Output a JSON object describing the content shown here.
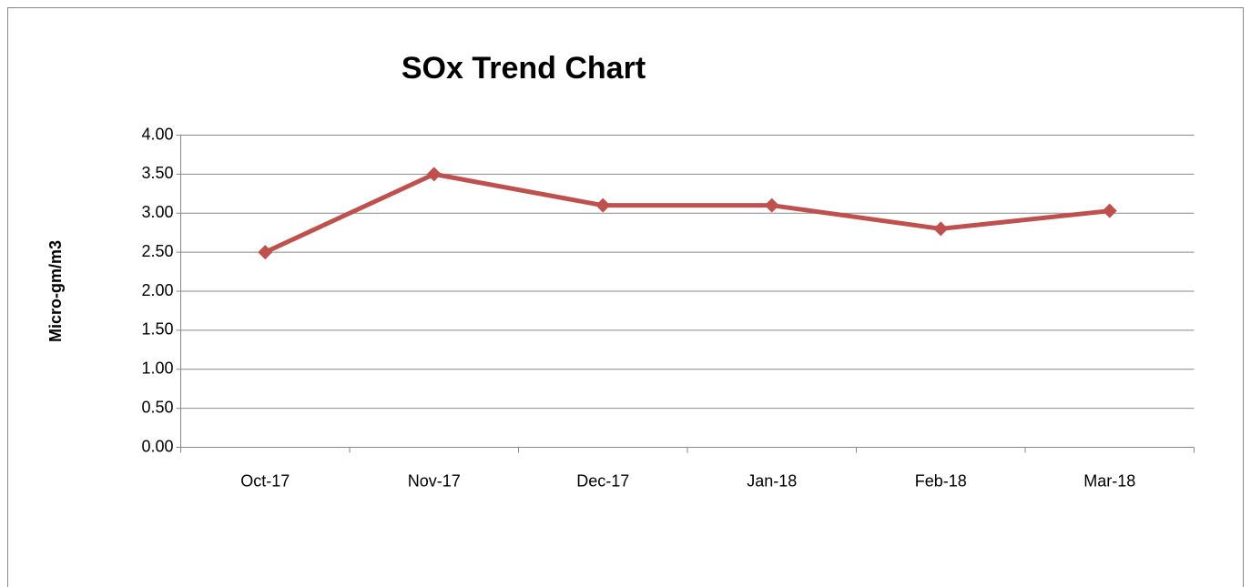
{
  "chart_data": {
    "type": "line",
    "title": "SOx Trend Chart",
    "y_label": "Micro-gm/m3",
    "categories": [
      "Oct-17",
      "Nov-17",
      "Dec-17",
      "Jan-18",
      "Feb-18",
      "Mar-18"
    ],
    "series": [
      {
        "name": "SOx",
        "color": "#c0504d",
        "values": [
          2.5,
          3.5,
          3.1,
          3.1,
          2.8,
          3.03
        ]
      }
    ],
    "ylim": [
      0,
      4
    ],
    "yticks": [
      {
        "value": 0,
        "label": "0.00"
      },
      {
        "value": 0.5,
        "label": "0.50"
      },
      {
        "value": 1,
        "label": "1.00"
      },
      {
        "value": 1.5,
        "label": "1.50"
      },
      {
        "value": 2,
        "label": "2.00"
      },
      {
        "value": 2.5,
        "label": "2.50"
      },
      {
        "value": 3,
        "label": "3.00"
      },
      {
        "value": 3.5,
        "label": "3.50"
      },
      {
        "value": 4,
        "label": "4.00"
      }
    ],
    "grid": true
  }
}
